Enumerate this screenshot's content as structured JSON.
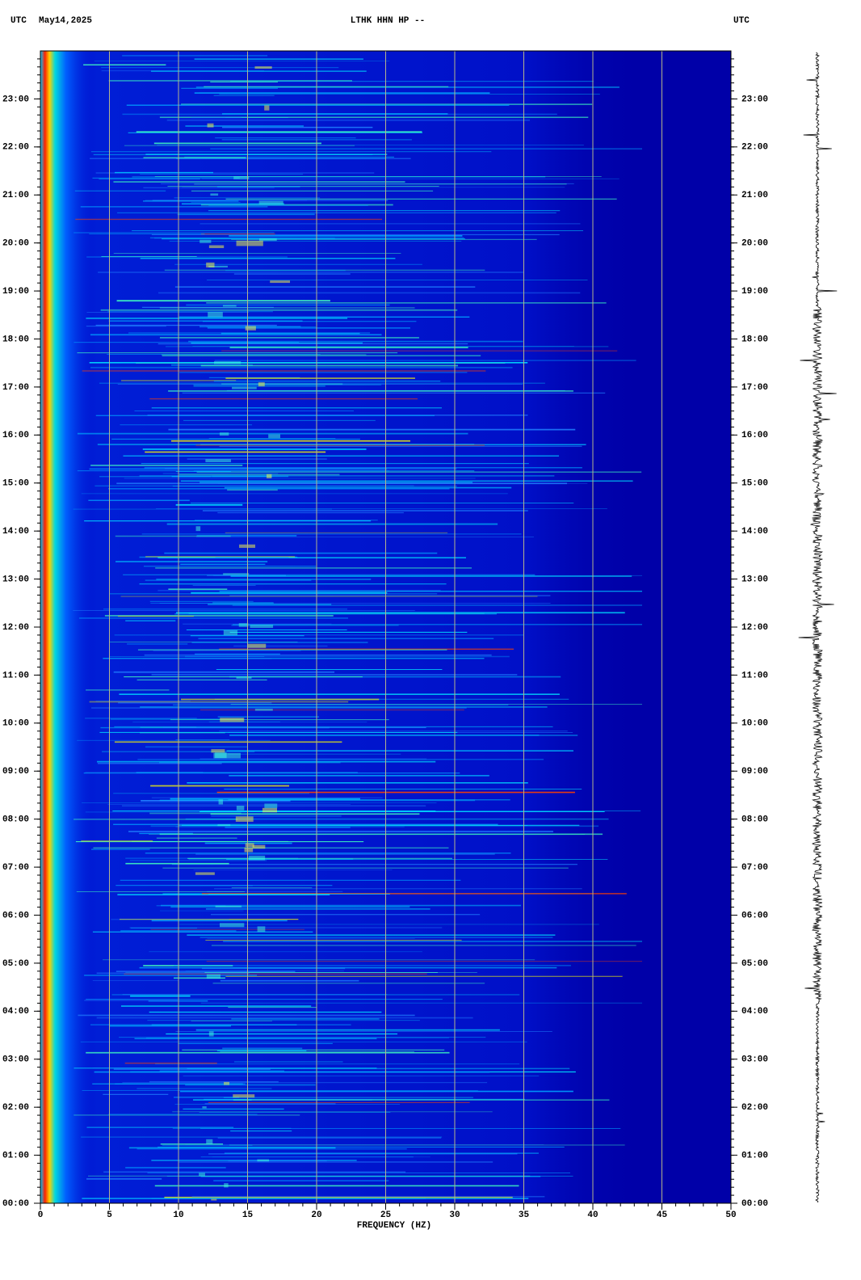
{
  "chart_data": {
    "type": "spectrogram",
    "header_left": "UTC",
    "date": "May14,2025",
    "title": "LTHK HHN HP --",
    "header_right": "UTC",
    "xlabel": "FREQUENCY (HZ)",
    "xlim": [
      0,
      50
    ],
    "xticks": [
      0,
      5,
      10,
      15,
      20,
      25,
      30,
      35,
      40,
      45,
      50
    ],
    "ylim": [
      0,
      24
    ],
    "yticks": [
      {
        "value": 0,
        "label": "00:00"
      },
      {
        "value": 1,
        "label": "01:00"
      },
      {
        "value": 2,
        "label": "02:00"
      },
      {
        "value": 3,
        "label": "03:00"
      },
      {
        "value": 4,
        "label": "04:00"
      },
      {
        "value": 5,
        "label": "05:00"
      },
      {
        "value": 6,
        "label": "06:00"
      },
      {
        "value": 7,
        "label": "07:00"
      },
      {
        "value": 8,
        "label": "08:00"
      },
      {
        "value": 9,
        "label": "09:00"
      },
      {
        "value": 10,
        "label": "10:00"
      },
      {
        "value": 11,
        "label": "11:00"
      },
      {
        "value": 12,
        "label": "12:00"
      },
      {
        "value": 13,
        "label": "13:00"
      },
      {
        "value": 14,
        "label": "14:00"
      },
      {
        "value": 15,
        "label": "15:00"
      },
      {
        "value": 16,
        "label": "16:00"
      },
      {
        "value": 17,
        "label": "17:00"
      },
      {
        "value": 18,
        "label": "18:00"
      },
      {
        "value": 19,
        "label": "19:00"
      },
      {
        "value": 20,
        "label": "20:00"
      },
      {
        "value": 21,
        "label": "21:00"
      },
      {
        "value": 22,
        "label": "22:00"
      },
      {
        "value": 23,
        "label": "23:00"
      }
    ],
    "grid": true,
    "grid_color": "#b4b48c",
    "background_color": "#0000a8"
  }
}
